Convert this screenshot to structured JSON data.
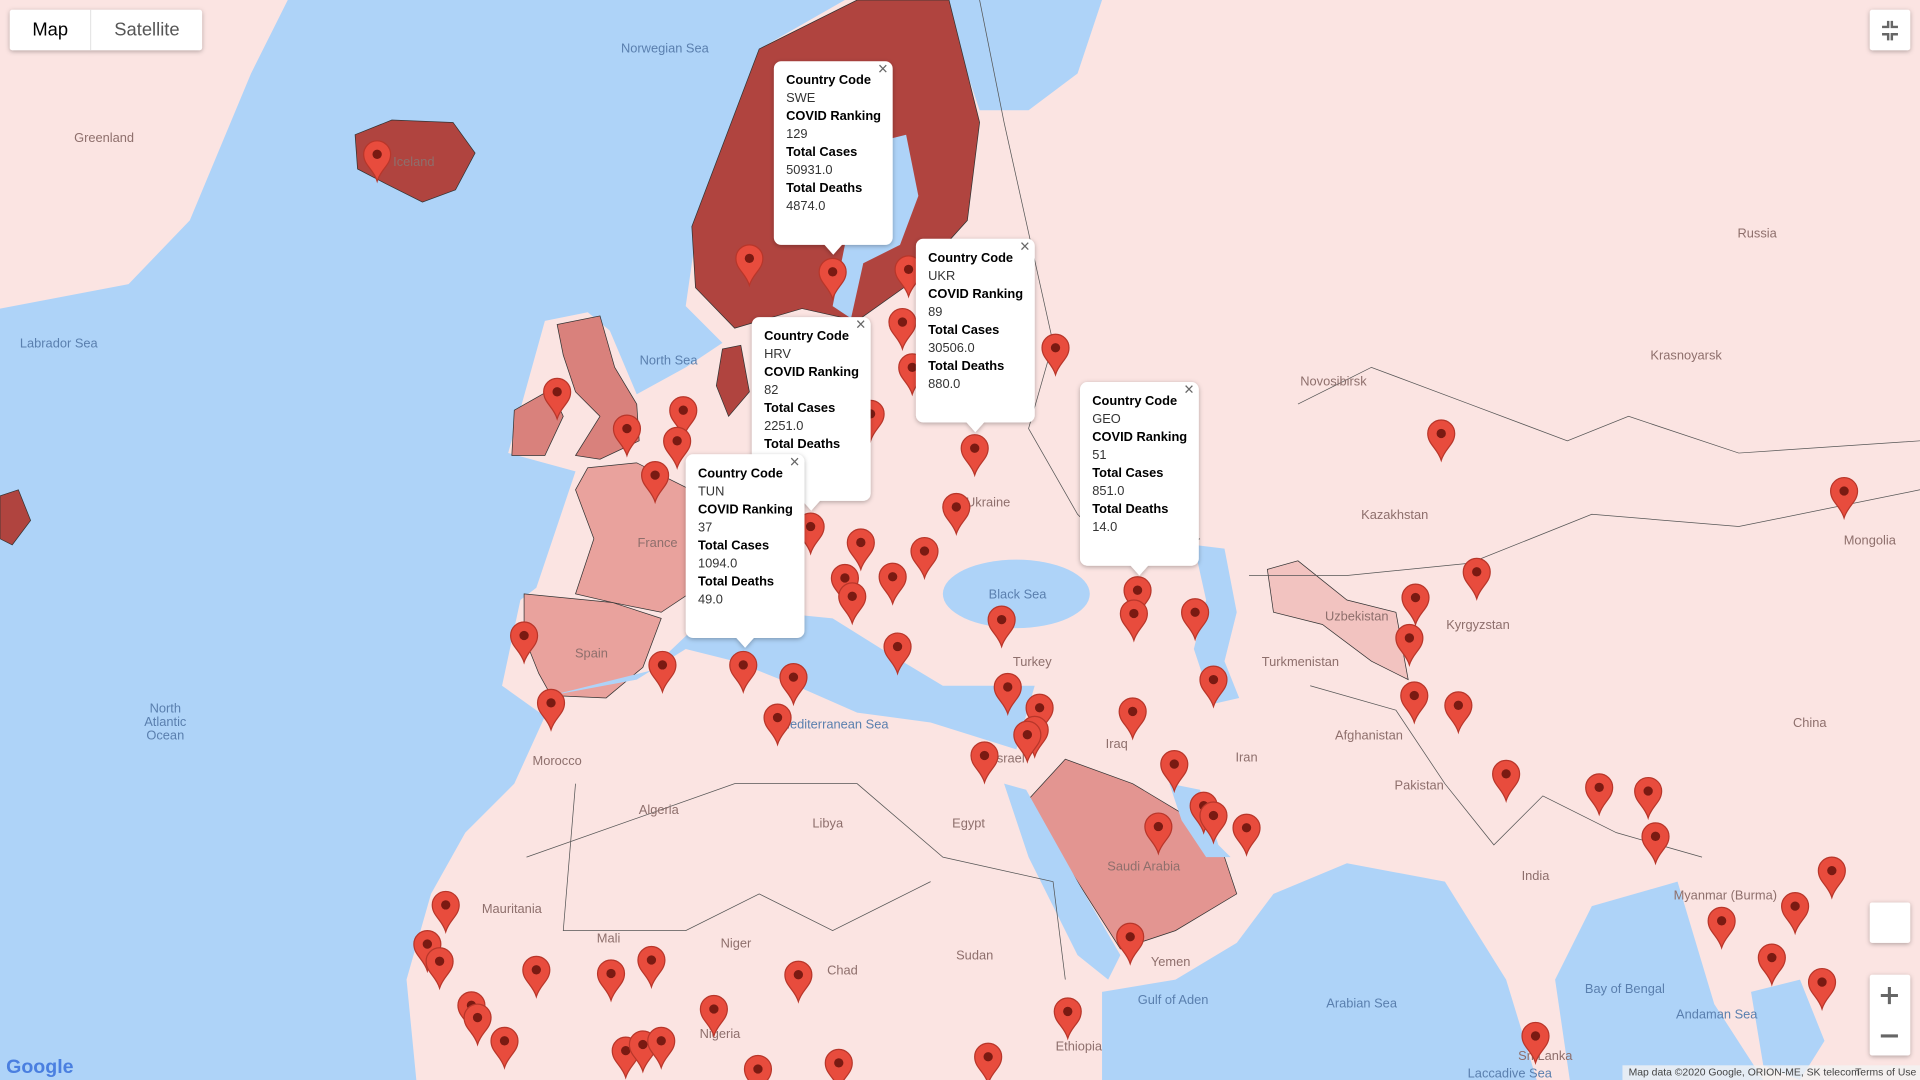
{
  "controls": {
    "map_button": "Map",
    "satellite_button": "Satellite"
  },
  "labels": [
    "Greenland",
    "Norwegian Sea",
    "Iceland",
    "Labrador Sea",
    "North Sea",
    "Russia",
    "Kazakhstan",
    "Mongolia",
    "Uzbekistan",
    "Turkmenistan",
    "Afghanistan",
    "Pakistan",
    "China",
    "India",
    "Iran",
    "Iraq",
    "Saudi Arabia",
    "Yemen",
    "Egypt",
    "Libya",
    "Algeria",
    "Morocco",
    "Mauritania",
    "Mali",
    "Niger",
    "Chad",
    "Sudan",
    "Ethiopia",
    "Nigeria",
    "Spain",
    "France",
    "Turkey",
    "Black Sea",
    "Mediterranean Sea",
    "North",
    "Atlantic",
    "Ocean",
    "Arabian Sea",
    "Bay of Bengal",
    "Gulf of Aden",
    "Andaman Sea",
    "Sri Lanka",
    "Myanmar (Burma)",
    "Israel",
    "Ukraine",
    "Kyrgyzstan",
    "Laccadive Sea",
    "Novosibirsk",
    "Krasnoyarsk"
  ],
  "info_windows": [
    {
      "fields": [
        {
          "label": "Country Code",
          "value": "SWE"
        },
        {
          "label": "COVID Ranking",
          "value": "129"
        },
        {
          "label": "Total Cases",
          "value": "50931.0"
        },
        {
          "label": "Total Deaths",
          "value": "4874.0"
        }
      ]
    },
    {
      "fields": [
        {
          "label": "Country Code",
          "value": "UKR"
        },
        {
          "label": "COVID Ranking",
          "value": "89"
        },
        {
          "label": "Total Cases",
          "value": "30506.0"
        },
        {
          "label": "Total Deaths",
          "value": "880.0"
        }
      ]
    },
    {
      "fields": [
        {
          "label": "Country Code",
          "value": "HRV"
        },
        {
          "label": "COVID Ranking",
          "value": "82"
        },
        {
          "label": "Total Cases",
          "value": "2251.0"
        },
        {
          "label": "Total Deaths"
        }
      ]
    },
    {
      "fields": [
        {
          "label": "Country Code",
          "value": "TUN"
        },
        {
          "label": "COVID Ranking",
          "value": "37"
        },
        {
          "label": "Total Cases",
          "value": "1094.0"
        },
        {
          "label": "Total Deaths",
          "value": "49.0"
        }
      ]
    },
    {
      "fields": [
        {
          "label": "Country Code",
          "value": "GEO"
        },
        {
          "label": "COVID Ranking",
          "value": "51"
        },
        {
          "label": "Total Cases",
          "value": "851.0"
        },
        {
          "label": "Total Deaths",
          "value": "14.0"
        }
      ]
    }
  ],
  "footer": {
    "logo": "Google",
    "attribution": "Map data ©2020 Google, ORION-ME, SK telecom",
    "terms": "Terms of Use"
  }
}
